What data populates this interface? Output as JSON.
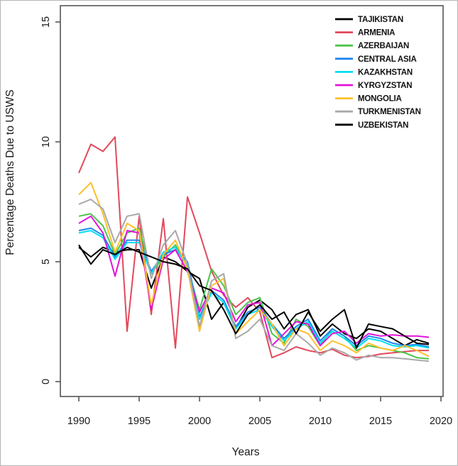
{
  "figure": {
    "background": "#ffffff",
    "border_color": "#b5b5b5",
    "axis_color": "#4a4a4a",
    "text_color": "#1a1a1a"
  },
  "chart_data": {
    "type": "line",
    "title": "",
    "xlabel": "Years",
    "ylabel": "Percentage Deaths Due to USWS",
    "xlim": [
      1988.4,
      2020.2
    ],
    "ylim": [
      -0.62,
      15.68
    ],
    "grid": false,
    "legend_position": "top-right",
    "x_ticks": [
      1990,
      1995,
      2000,
      2005,
      2010,
      2015,
      2020
    ],
    "y_ticks": [
      0,
      5,
      10,
      15
    ],
    "x": [
      1990,
      1991,
      1992,
      1993,
      1994,
      1995,
      1996,
      1997,
      1998,
      1999,
      2000,
      2001,
      2002,
      2003,
      2004,
      2005,
      2006,
      2007,
      2008,
      2009,
      2010,
      2011,
      2012,
      2013,
      2014,
      2015,
      2016,
      2017,
      2018,
      2019
    ],
    "series": [
      {
        "name": "TAJIKISTAN",
        "color": "#000000",
        "values": [
          5.6,
          5.2,
          5.6,
          5.4,
          5.5,
          5.5,
          3.9,
          5.2,
          5.0,
          4.6,
          4.3,
          2.6,
          3.3,
          2.2,
          3.1,
          3.4,
          3.0,
          2.2,
          2.8,
          3.0,
          1.9,
          2.4,
          2.0,
          1.8,
          2.2,
          2.1,
          1.8,
          1.5,
          1.75,
          1.6
        ]
      },
      {
        "name": "ARMENIA",
        "color": "#e2495b",
        "values": [
          8.7,
          9.9,
          9.6,
          10.2,
          2.1,
          6.9,
          2.8,
          6.8,
          1.4,
          7.7,
          6.2,
          4.6,
          3.6,
          3.1,
          3.5,
          2.9,
          1.0,
          1.2,
          1.45,
          1.3,
          1.2,
          1.35,
          1.1,
          1.0,
          1.05,
          1.15,
          1.2,
          1.25,
          1.3,
          1.3
        ]
      },
      {
        "name": "AZERBAIJAN",
        "color": "#4ac44a",
        "values": [
          6.9,
          7.0,
          6.5,
          5.3,
          6.2,
          6.4,
          4.5,
          5.2,
          5.7,
          4.8,
          3.0,
          4.7,
          4.0,
          2.8,
          3.3,
          3.5,
          2.0,
          1.6,
          2.6,
          2.3,
          1.5,
          2.2,
          1.9,
          1.3,
          1.5,
          1.4,
          1.3,
          1.2,
          1.0,
          0.95
        ]
      },
      {
        "name": "CENTRAL ASIA",
        "color": "#1d86ee",
        "values": [
          6.3,
          6.4,
          6.1,
          5.2,
          5.9,
          5.9,
          4.6,
          5.3,
          5.5,
          5.0,
          2.7,
          3.8,
          3.4,
          2.3,
          2.9,
          3.1,
          2.4,
          1.8,
          2.3,
          2.6,
          1.7,
          2.2,
          1.9,
          1.5,
          1.9,
          1.8,
          1.6,
          1.5,
          1.55,
          1.45
        ]
      },
      {
        "name": "KAZAKHSTAN",
        "color": "#00dfee",
        "values": [
          6.2,
          6.3,
          6.0,
          5.1,
          5.8,
          5.8,
          4.5,
          5.4,
          5.6,
          4.8,
          2.6,
          3.7,
          3.3,
          2.2,
          2.8,
          3.0,
          2.3,
          1.7,
          2.2,
          2.5,
          1.6,
          2.1,
          1.8,
          1.4,
          1.8,
          1.7,
          1.5,
          1.45,
          1.5,
          1.4
        ]
      },
      {
        "name": "KYRGYZSTAN",
        "color": "#e313d9",
        "values": [
          6.6,
          6.9,
          6.2,
          4.4,
          6.3,
          6.2,
          3.0,
          5.1,
          5.5,
          4.6,
          2.9,
          3.9,
          3.7,
          2.5,
          3.2,
          3.3,
          1.5,
          2.0,
          2.5,
          2.4,
          1.5,
          2.0,
          2.1,
          1.6,
          2.0,
          1.9,
          1.95,
          1.9,
          1.9,
          1.85
        ]
      },
      {
        "name": "MONGOLIA",
        "color": "#fdc02a",
        "values": [
          7.8,
          8.3,
          7.0,
          5.4,
          6.6,
          6.3,
          3.2,
          5.3,
          5.9,
          4.7,
          2.1,
          4.0,
          4.3,
          2.0,
          2.5,
          3.0,
          2.4,
          1.5,
          2.2,
          2.0,
          1.3,
          1.7,
          1.5,
          1.2,
          1.6,
          1.4,
          1.3,
          1.5,
          1.3,
          1.05
        ]
      },
      {
        "name": "TURKMENISTAN",
        "color": "#a9a9a9",
        "values": [
          7.4,
          7.6,
          7.2,
          5.8,
          6.9,
          7.0,
          4.3,
          5.7,
          6.3,
          4.9,
          2.3,
          4.2,
          4.5,
          1.8,
          2.1,
          2.6,
          1.5,
          1.3,
          2.0,
          1.6,
          1.1,
          1.4,
          1.2,
          0.9,
          1.1,
          1.0,
          1.0,
          0.95,
          0.9,
          0.85
        ]
      },
      {
        "name": "UZBEKISTAN",
        "color": "#000000",
        "values": [
          5.7,
          4.9,
          5.5,
          5.3,
          5.6,
          5.4,
          5.2,
          5.0,
          4.9,
          4.7,
          4.0,
          3.8,
          3.0,
          2.0,
          2.8,
          3.2,
          2.6,
          2.9,
          2.0,
          2.9,
          2.1,
          2.6,
          3.0,
          1.4,
          2.4,
          2.3,
          2.2,
          1.9,
          1.6,
          1.55
        ]
      }
    ]
  }
}
